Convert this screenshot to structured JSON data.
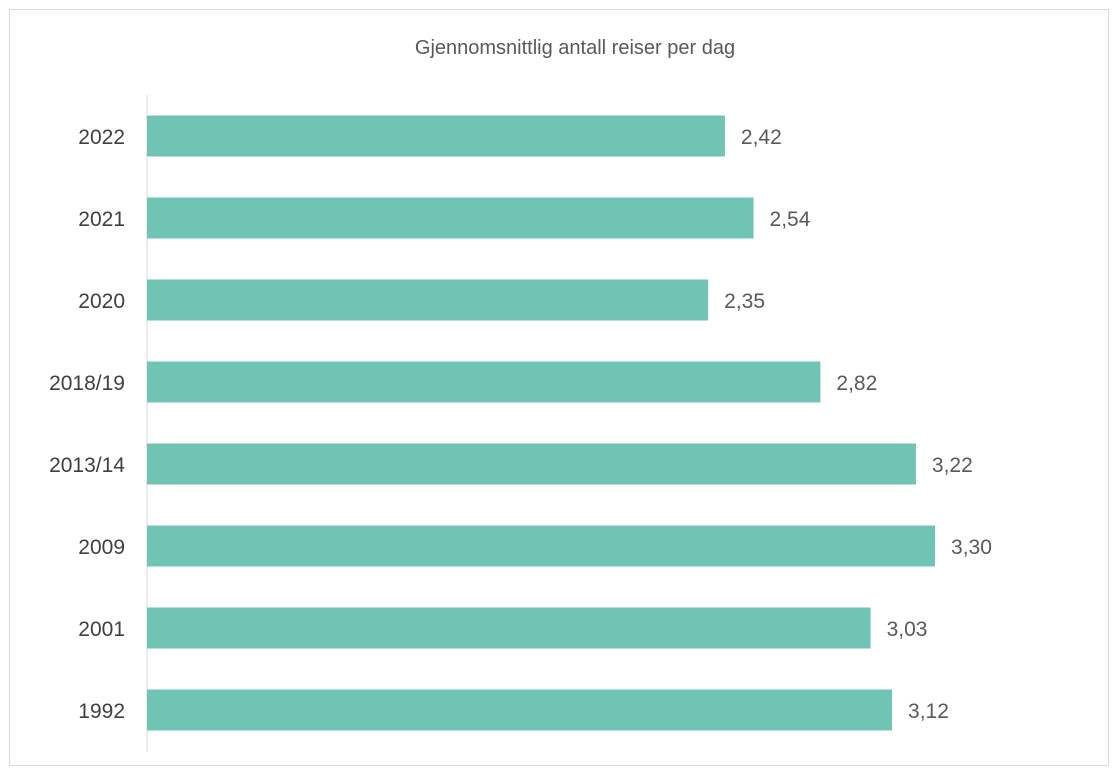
{
  "chart_data": {
    "type": "bar",
    "orientation": "horizontal",
    "title": "Gjennomsnittlig antall reiser per dag",
    "xlabel": "",
    "ylabel": "",
    "categories": [
      "2022",
      "2021",
      "2020",
      "2018/19",
      "2013/14",
      "2009",
      "2001",
      "1992"
    ],
    "values": [
      2.42,
      2.54,
      2.35,
      2.82,
      3.22,
      3.3,
      3.03,
      3.12
    ],
    "value_labels": [
      "2,42",
      "2,54",
      "2,35",
      "2,82",
      "3,22",
      "3,30",
      "3,03",
      "3,12"
    ],
    "xlim": [
      0,
      3.5
    ],
    "grid": false,
    "legend": "none",
    "bar_color": "#70c4b3",
    "axis_color": "#d9d9d9"
  }
}
